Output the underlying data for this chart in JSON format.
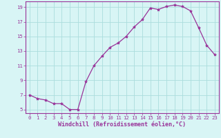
{
  "x": [
    0,
    1,
    2,
    3,
    4,
    5,
    6,
    7,
    8,
    9,
    10,
    11,
    12,
    13,
    14,
    15,
    16,
    17,
    18,
    19,
    20,
    21,
    22,
    23
  ],
  "y": [
    7.0,
    6.5,
    6.3,
    5.8,
    5.8,
    5.0,
    5.0,
    8.8,
    11.0,
    12.3,
    13.5,
    14.1,
    15.0,
    16.3,
    17.3,
    18.9,
    18.7,
    19.1,
    19.3,
    19.1,
    18.5,
    16.2,
    13.8,
    12.5
  ],
  "line_color": "#993399",
  "marker": "*",
  "marker_size": 3,
  "background_color": "#d8f5f5",
  "grid_color": "#aadddd",
  "xlabel": "Windchill (Refroidissement éolien,°C)",
  "ylabel": "",
  "xlim": [
    -0.5,
    23.5
  ],
  "ylim": [
    4.5,
    19.8
  ],
  "yticks": [
    5,
    7,
    9,
    11,
    13,
    15,
    17,
    19
  ],
  "xticks": [
    0,
    1,
    2,
    3,
    4,
    5,
    6,
    7,
    8,
    9,
    10,
    11,
    12,
    13,
    14,
    15,
    16,
    17,
    18,
    19,
    20,
    21,
    22,
    23
  ],
  "tick_label_fontsize": 5.2,
  "xlabel_fontsize": 6.0,
  "axis_color": "#993399",
  "tick_color": "#993399",
  "spine_color": "#993399"
}
